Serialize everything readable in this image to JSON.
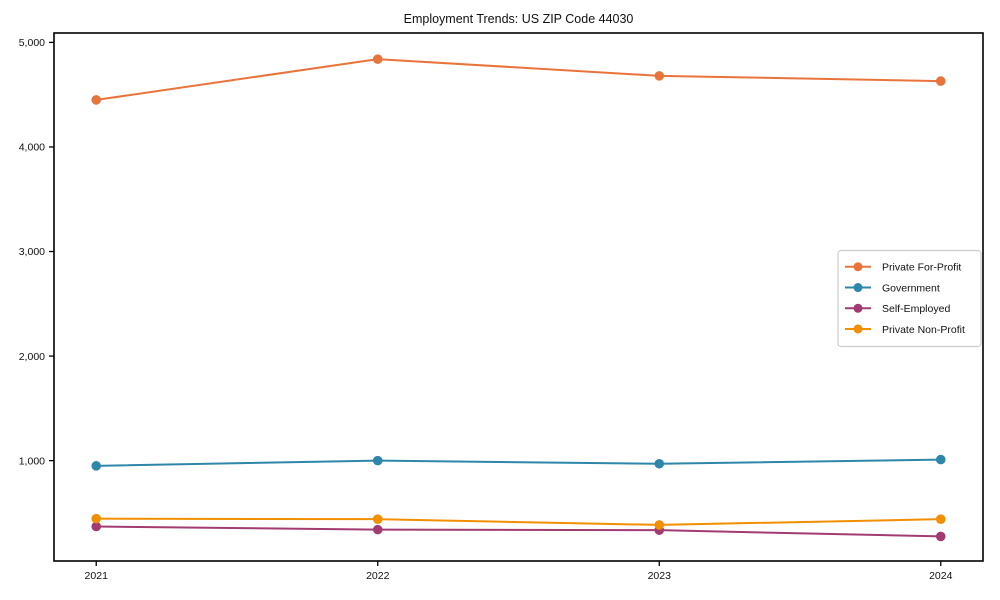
{
  "title": "Employment Trends: US ZIP Code 44030",
  "chart_data": {
    "type": "line",
    "title": "Employment Trends: US ZIP Code 44030",
    "x": [
      2021,
      2022,
      2023,
      2024
    ],
    "categories": [
      "2021",
      "2022",
      "2023",
      "2024"
    ],
    "series": [
      {
        "name": "Private For-Profit",
        "color": "#E8743B",
        "values": [
          4450,
          4840,
          4680,
          4630
        ]
      },
      {
        "name": "Government",
        "color": "#2E86AB",
        "values": [
          950,
          1000,
          970,
          1010
        ]
      },
      {
        "name": "Self-Employed",
        "color": "#A23B72",
        "values": [
          370,
          340,
          335,
          275
        ]
      },
      {
        "name": "Private Non-Profit",
        "color": "#F18F01",
        "values": [
          445,
          440,
          385,
          440
        ]
      }
    ],
    "xlabel": "",
    "ylabel": "",
    "xlim": [
      2020.85,
      2024.15
    ],
    "ylim": [
      40,
      5090
    ],
    "yticks": [
      1000,
      2000,
      3000,
      4000,
      5000
    ],
    "ytick_labels": [
      "1,000",
      "2,000",
      "3,000",
      "4,000",
      "5,000"
    ],
    "grid": false,
    "legend_position": "center-right",
    "marker": "circle",
    "axis_color": "#000000",
    "legend_border_color": "#cccccc",
    "legend_background": "#ffffff"
  }
}
